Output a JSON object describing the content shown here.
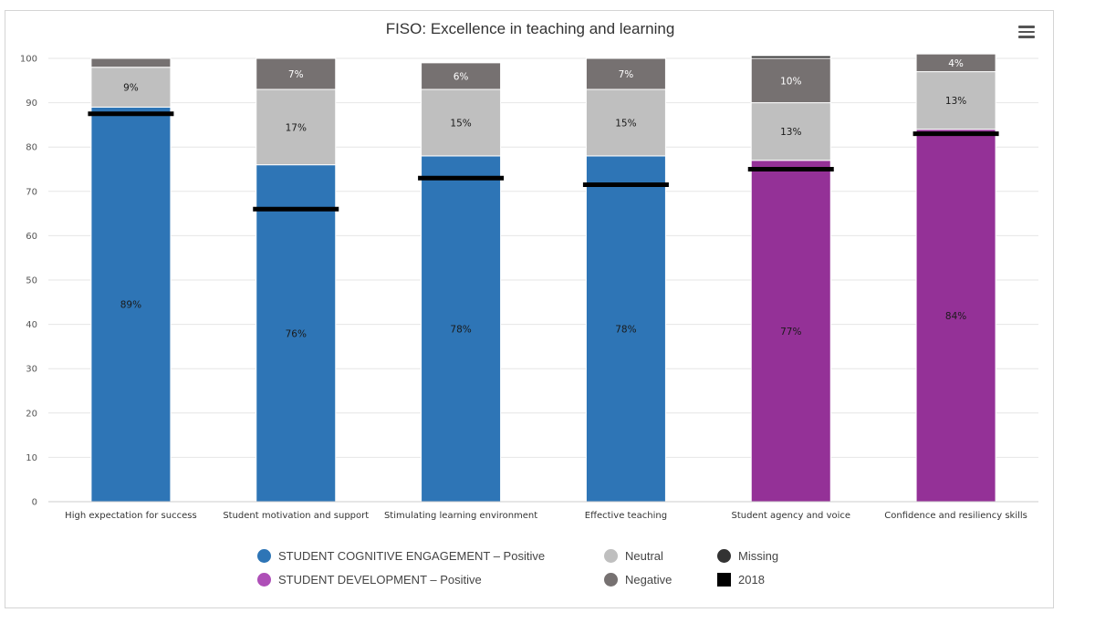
{
  "chart": {
    "title": "FISO: Excellence in teaching and learning",
    "menu_icon": "hamburger-menu-icon"
  },
  "colors": {
    "cognitive": "#2E75B6",
    "development": "#943197",
    "neutral": "#BFBFBF",
    "negative": "#767171",
    "missing": "#333333",
    "year_marker": "#000000",
    "legend_cognitive": "#2E75B6",
    "legend_development": "#AE4FB7",
    "legend_neutral": "#BFBFBF",
    "legend_negative": "#767171",
    "legend_missing": "#333333",
    "legend_2018": "#000000"
  },
  "chart_data": {
    "type": "bar",
    "stacked": true,
    "title": "FISO: Excellence in teaching and learning",
    "xlabel": "",
    "ylabel": "",
    "ylim": [
      0,
      100
    ],
    "yticks": [
      0,
      10,
      20,
      30,
      40,
      50,
      60,
      70,
      80,
      90,
      100
    ],
    "grid": true,
    "legend_position": "bottom",
    "categories": [
      "High expectation for success",
      "Student motivation and support",
      "Stimulating learning environment",
      "Effective teaching",
      "Student agency and voice",
      "Confidence and resiliency skills"
    ],
    "series": [
      {
        "name": "STUDENT COGNITIVE ENGAGEMENT – Positive",
        "key": "cognitive",
        "values": [
          89,
          76,
          78,
          78,
          null,
          null
        ],
        "labels": [
          "89%",
          "76%",
          "78%",
          "78%",
          "",
          ""
        ]
      },
      {
        "name": "STUDENT DEVELOPMENT – Positive",
        "key": "development",
        "values": [
          null,
          null,
          null,
          null,
          77,
          84
        ],
        "labels": [
          "",
          "",
          "",
          "",
          "77%",
          "84%"
        ]
      },
      {
        "name": "Neutral",
        "key": "neutral",
        "values": [
          9,
          17,
          15,
          15,
          13,
          13
        ],
        "labels": [
          "9%",
          "17%",
          "15%",
          "15%",
          "13%",
          "13%"
        ]
      },
      {
        "name": "Negative",
        "key": "negative",
        "values": [
          2,
          7,
          6,
          7,
          10,
          4
        ],
        "labels": [
          "",
          "7%",
          "6%",
          "7%",
          "10%",
          "4%"
        ]
      },
      {
        "name": "Missing",
        "key": "missing",
        "values": [
          0,
          0,
          0,
          0,
          0.6,
          0
        ],
        "labels": [
          "",
          "",
          "",
          "",
          "",
          ""
        ]
      }
    ],
    "year_marker": {
      "name": "2018",
      "values": [
        87.5,
        66,
        73,
        71.5,
        75,
        83
      ]
    }
  },
  "legend": {
    "items": [
      {
        "label": "STUDENT COGNITIVE ENGAGEMENT – Positive",
        "color_key": "legend_cognitive",
        "shape": "circle"
      },
      {
        "label": "Neutral",
        "color_key": "legend_neutral",
        "shape": "circle"
      },
      {
        "label": "Missing",
        "color_key": "legend_missing",
        "shape": "circle"
      },
      {
        "label": "STUDENT DEVELOPMENT – Positive",
        "color_key": "legend_development",
        "shape": "circle"
      },
      {
        "label": "Negative",
        "color_key": "legend_negative",
        "shape": "circle"
      },
      {
        "label": "2018",
        "color_key": "legend_2018",
        "shape": "square"
      }
    ]
  }
}
